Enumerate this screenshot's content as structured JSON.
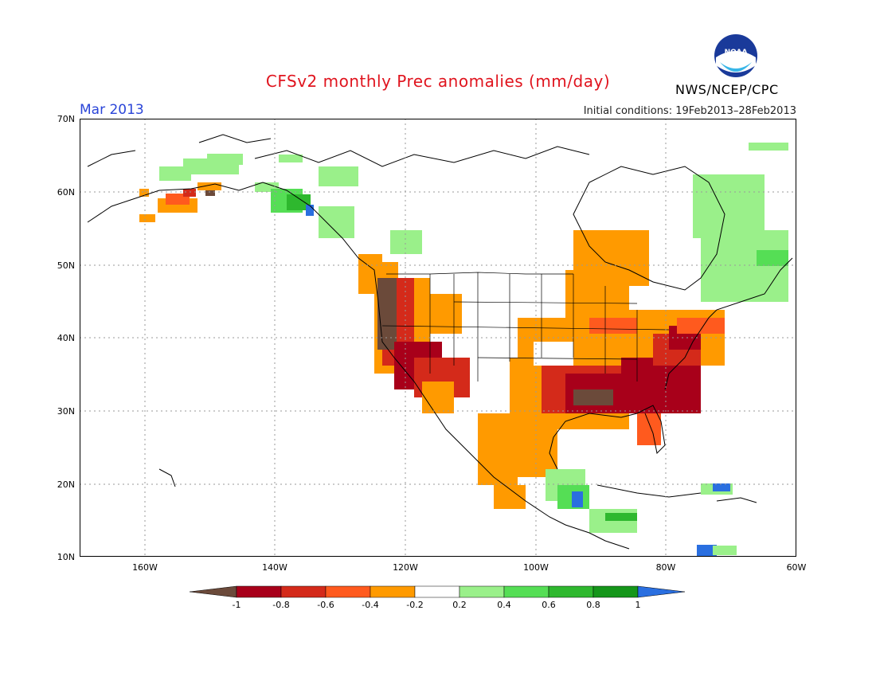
{
  "title": "CFSv2 monthly Prec anomalies (mm/day)",
  "month": "Mar 2013",
  "initial_conditions": "Initial conditions: 19Feb2013–28Feb2013",
  "agency": "NWS/NCEP/CPC",
  "logo_text": "NOAA",
  "latitude_labels": [
    "70N",
    "60N",
    "50N",
    "40N",
    "30N",
    "20N",
    "10N"
  ],
  "longitude_labels": [
    "160W",
    "140W",
    "120W",
    "100W",
    "80W",
    "60W"
  ],
  "colorbar": {
    "labels": [
      "-1",
      "-0.8",
      "-0.6",
      "-0.4",
      "-0.2",
      "0.2",
      "0.4",
      "0.6",
      "0.8",
      "1"
    ],
    "colors": [
      "#6b4a3a",
      "#a8001a",
      "#d42a1a",
      "#ff5a1e",
      "#ff9a00",
      "#ffffff",
      "#9af08a",
      "#55de55",
      "#2eb82e",
      "#15961a",
      "#2a6fe0"
    ]
  },
  "colors": {
    "title": "#e0141e",
    "month": "#2a45d8",
    "frame": "#000000",
    "grid": "#9a9a9a",
    "coast": "#000000"
  }
}
